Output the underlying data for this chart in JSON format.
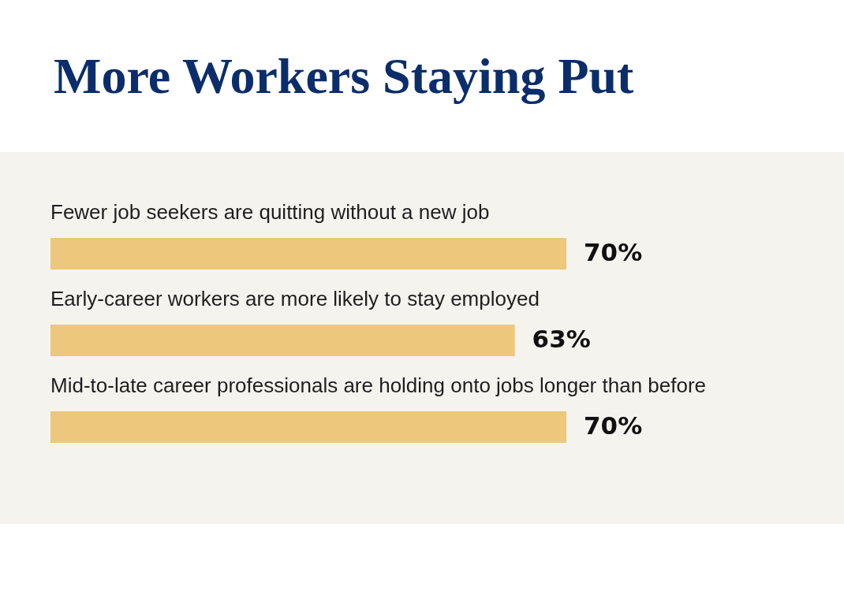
{
  "chart_data": {
    "type": "bar",
    "orientation": "horizontal",
    "title": "More Workers Staying Put",
    "categories": [
      "Fewer job seekers are quitting without a new job",
      "Early-career workers are more likely to stay employed",
      "Mid-to-late career professionals are holding onto jobs longer than before"
    ],
    "values": [
      70,
      63,
      70
    ],
    "value_labels": [
      "70%",
      "63%",
      "70%"
    ],
    "color": "#edc77b"
  }
}
